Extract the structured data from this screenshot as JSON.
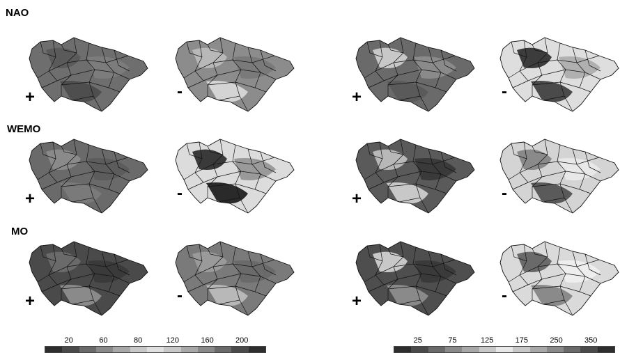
{
  "rows": [
    {
      "label": "NAO"
    },
    {
      "label": "WEMO"
    },
    {
      "label": "MO"
    }
  ],
  "signs": {
    "positive": "+",
    "negative": "-"
  },
  "legend_left": {
    "tick_labels": [
      "20",
      "60",
      "80",
      "120",
      "160",
      "200"
    ],
    "colors": [
      "#2e2e2e",
      "#4a4a4a",
      "#6a6a6a",
      "#8a8a8a",
      "#a8a8a8",
      "#c8c8c8",
      "#e0e0e0",
      "#c8c8c8",
      "#a8a8a8",
      "#8a8a8a",
      "#6a6a6a",
      "#4a4a4a",
      "#2e2e2e"
    ]
  },
  "legend_right": {
    "tick_labels": [
      "25",
      "75",
      "125",
      "175",
      "250",
      "350"
    ],
    "colors": [
      "#2e2e2e",
      "#4a4a4a",
      "#6a6a6a",
      "#8a8a8a",
      "#a8a8a8",
      "#c8c8c8",
      "#e8e8e8",
      "#c8c8c8",
      "#a8a8a8",
      "#8a8a8a",
      "#6a6a6a",
      "#4a4a4a",
      "#2e2e2e"
    ]
  },
  "panels": [
    {
      "row": 0,
      "group": "left",
      "sign": "+",
      "base": "#6e6e6e",
      "patches": [
        "#5a5a5a",
        "#7c7c7c",
        "#4e4e4e"
      ]
    },
    {
      "row": 0,
      "group": "left",
      "sign": "-",
      "base": "#8c8c8c",
      "patches": [
        "#b8b8b8",
        "#7a7a7a",
        "#d4d4d4"
      ]
    },
    {
      "row": 0,
      "group": "right",
      "sign": "+",
      "base": "#6a6a6a",
      "patches": [
        "#c8c8c8",
        "#8a8a8a",
        "#5a5a5a"
      ]
    },
    {
      "row": 0,
      "group": "right",
      "sign": "-",
      "base": "#dedede",
      "patches": [
        "#3c3c3c",
        "#b0b0b0",
        "#4a4a4a"
      ]
    },
    {
      "row": 1,
      "group": "left",
      "sign": "+",
      "base": "#6a6a6a",
      "patches": [
        "#8a8a8a",
        "#5c5c5c",
        "#7a7a7a"
      ]
    },
    {
      "row": 1,
      "group": "left",
      "sign": "-",
      "base": "#dcdcdc",
      "patches": [
        "#3a3a3a",
        "#9a9a9a",
        "#2a2a2a"
      ]
    },
    {
      "row": 1,
      "group": "right",
      "sign": "+",
      "base": "#5a5a5a",
      "patches": [
        "#b8b8b8",
        "#3a3a3a",
        "#c8c8c8"
      ]
    },
    {
      "row": 1,
      "group": "right",
      "sign": "-",
      "base": "#d4d4d4",
      "patches": [
        "#8a8a8a",
        "#e8e8e8",
        "#5a5a5a"
      ]
    },
    {
      "row": 2,
      "group": "left",
      "sign": "+",
      "base": "#4a4a4a",
      "patches": [
        "#6a6a6a",
        "#3a3a3a",
        "#8a8a8a"
      ]
    },
    {
      "row": 2,
      "group": "left",
      "sign": "-",
      "base": "#7a7a7a",
      "patches": [
        "#9a9a9a",
        "#6a6a6a",
        "#b8b8b8"
      ]
    },
    {
      "row": 2,
      "group": "right",
      "sign": "+",
      "base": "#4e4e4e",
      "patches": [
        "#c8c8c8",
        "#3a3a3a",
        "#8a8a8a"
      ]
    },
    {
      "row": 2,
      "group": "right",
      "sign": "-",
      "base": "#dadada",
      "patches": [
        "#6a6a6a",
        "#eeeeee",
        "#8a8a8a"
      ]
    }
  ]
}
